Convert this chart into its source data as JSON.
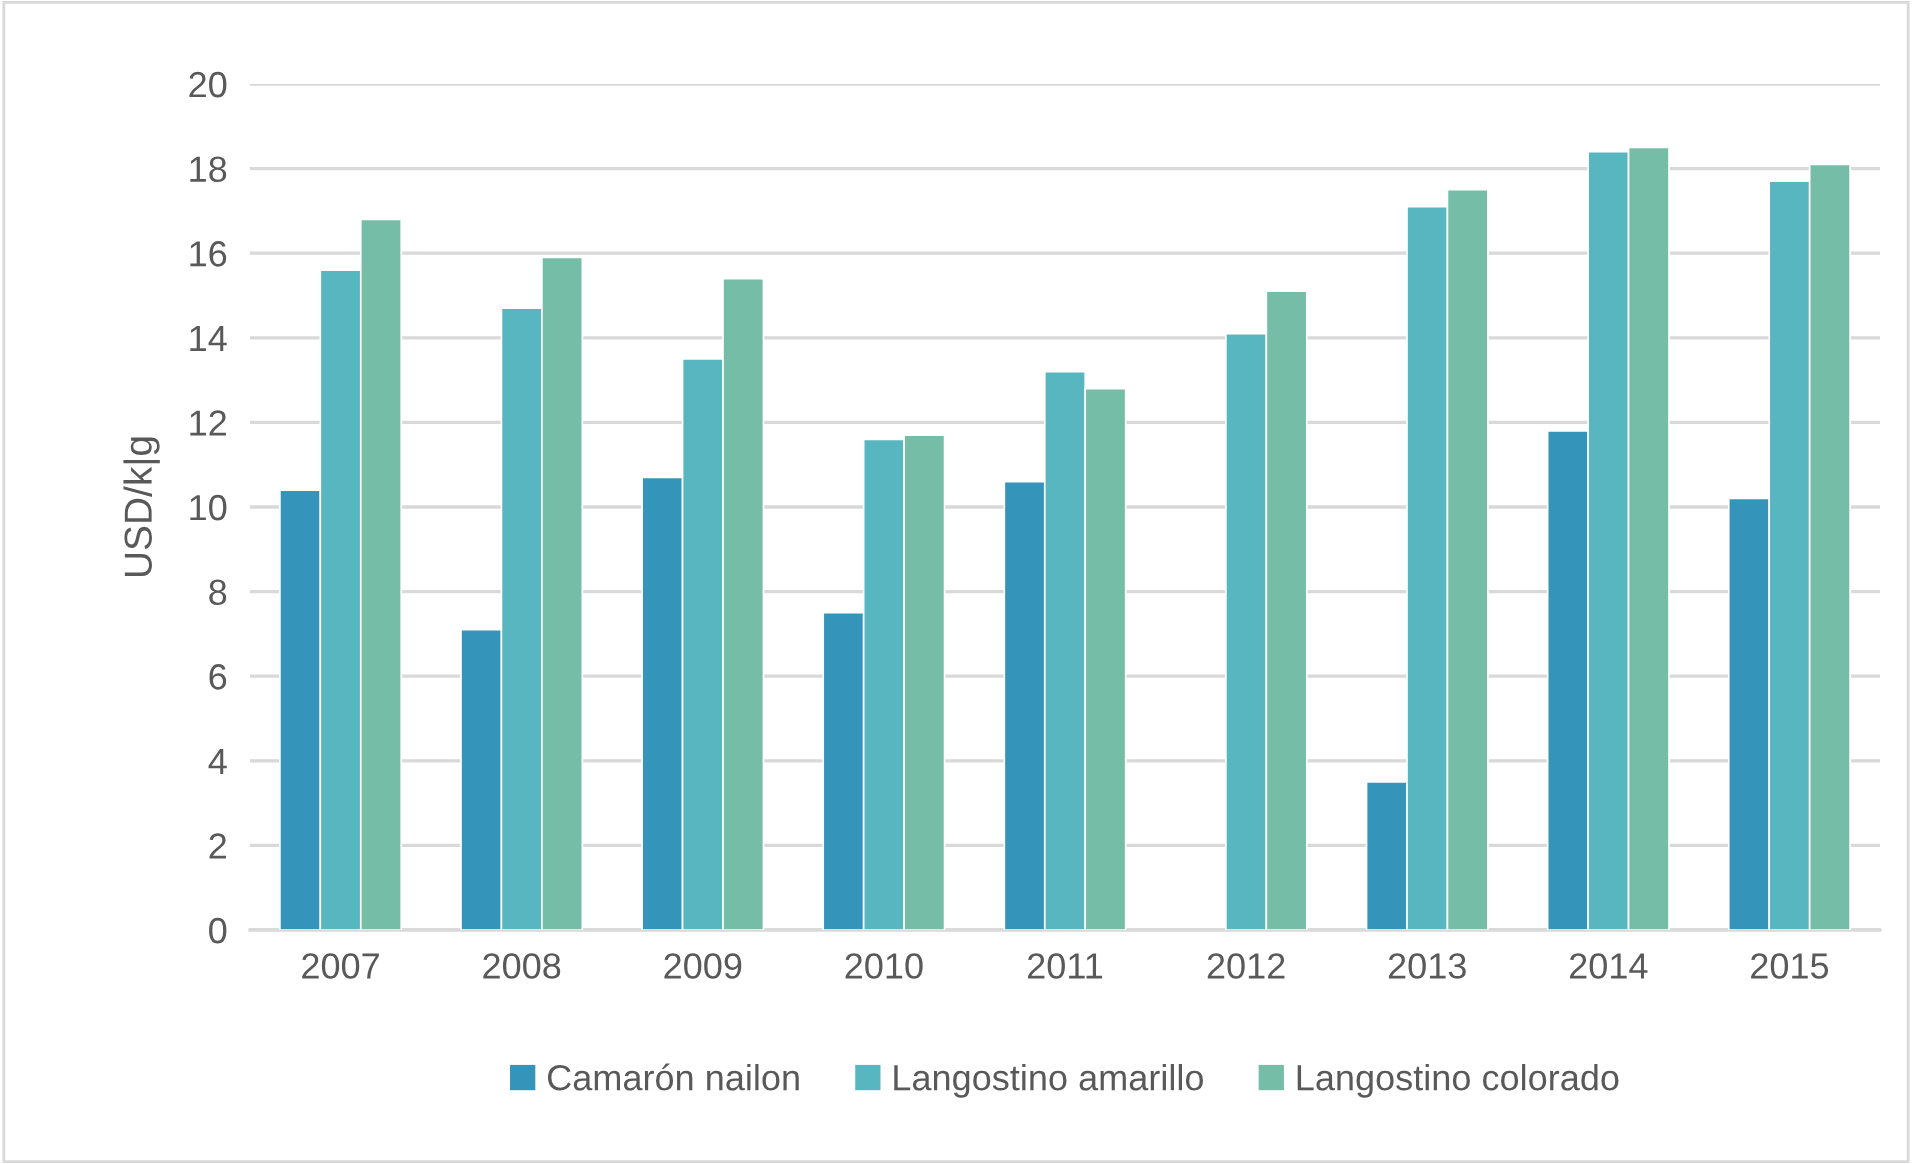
{
  "chart_data": {
    "type": "bar",
    "ylabel": "USD/k|g",
    "categories": [
      "2007",
      "2008",
      "2009",
      "2010",
      "2011",
      "2012",
      "2013",
      "2014",
      "2015"
    ],
    "series": [
      {
        "name": "Camarón nailon",
        "color": "#3494ba",
        "values": [
          10.4,
          7.1,
          10.7,
          7.5,
          10.6,
          null,
          3.5,
          11.8,
          10.2
        ]
      },
      {
        "name": "Langostino amarillo",
        "color": "#58b6c0",
        "values": [
          15.6,
          14.7,
          13.5,
          11.6,
          13.2,
          14.1,
          17.1,
          18.4,
          17.7
        ]
      },
      {
        "name": "Langostino colorado",
        "color": "#75bda7",
        "values": [
          16.8,
          15.9,
          15.4,
          11.7,
          12.8,
          15.1,
          17.5,
          18.5,
          18.1
        ]
      }
    ],
    "ylim": [
      0,
      20
    ],
    "yticks": [
      0,
      2,
      4,
      6,
      8,
      10,
      12,
      14,
      16,
      18,
      20
    ],
    "grid": "y",
    "legend": "bottom"
  }
}
